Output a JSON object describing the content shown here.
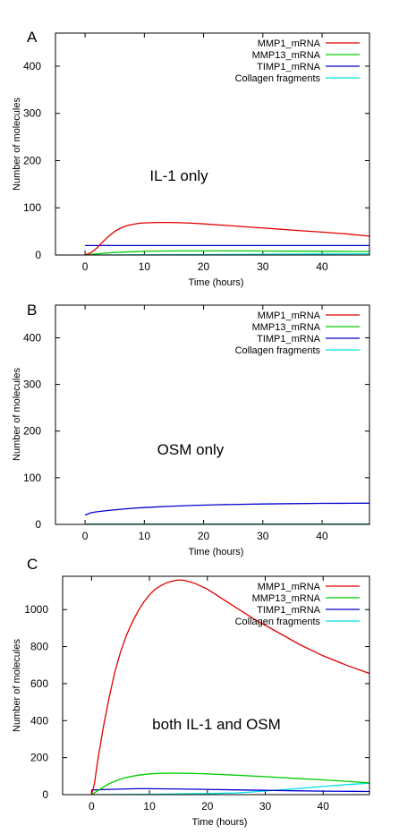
{
  "chart_data": [
    {
      "type": "line",
      "panel_label": "A",
      "annotation": "IL-1 only",
      "xlabel": "Time (hours)",
      "ylabel": "Number of molecules",
      "xlim": [
        -5,
        48
      ],
      "ylim": [
        0,
        470
      ],
      "xticks": [
        0,
        10,
        20,
        30,
        40
      ],
      "yticks": [
        0,
        100,
        200,
        300,
        400
      ],
      "grid": false,
      "legend_position": "top-right",
      "series": [
        {
          "name": "MMP1_mRNA",
          "color": "#e00000",
          "x": [
            0,
            1,
            2,
            3,
            4,
            5,
            6,
            7,
            8,
            9,
            10,
            12,
            14,
            16,
            18,
            20,
            24,
            28,
            32,
            36,
            40,
            44,
            48
          ],
          "y": [
            0,
            5,
            15,
            28,
            40,
            50,
            57,
            62,
            65,
            67,
            68,
            69,
            69,
            68.5,
            67.5,
            66,
            62.5,
            59,
            55.5,
            52,
            48.5,
            45,
            40
          ]
        },
        {
          "name": "MMP13_mRNA",
          "color": "#00cc00",
          "x": [
            0,
            2,
            4,
            6,
            8,
            10,
            12,
            16,
            20,
            25,
            30,
            35,
            40,
            45,
            48
          ],
          "y": [
            0,
            2.5,
            4.5,
            6,
            7,
            7.8,
            8.3,
            8.7,
            8.8,
            8.7,
            8.5,
            8.2,
            7.9,
            7.6,
            7.4
          ]
        },
        {
          "name": "TIMP1_mRNA",
          "color": "#0000cc",
          "x": [
            0,
            48
          ],
          "y": [
            20,
            20
          ]
        },
        {
          "name": "Collagen fragments",
          "color": "#00e0e0",
          "x": [
            0,
            10,
            20,
            30,
            40,
            48
          ],
          "y": [
            0,
            0.5,
            1,
            1.6,
            2.2,
            2.6
          ]
        }
      ]
    },
    {
      "type": "line",
      "panel_label": "B",
      "annotation": "OSM only",
      "xlabel": "Time (hours)",
      "ylabel": "Number of molecules",
      "xlim": [
        -5,
        48
      ],
      "ylim": [
        0,
        470
      ],
      "xticks": [
        0,
        10,
        20,
        30,
        40
      ],
      "yticks": [
        0,
        100,
        200,
        300,
        400
      ],
      "grid": false,
      "legend_position": "top-right",
      "series": [
        {
          "name": "MMP1_mRNA",
          "color": "#e00000",
          "x": [
            0,
            48
          ],
          "y": [
            0,
            0
          ]
        },
        {
          "name": "MMP13_mRNA",
          "color": "#00cc00",
          "x": [
            0,
            48
          ],
          "y": [
            0,
            0
          ]
        },
        {
          "name": "TIMP1_mRNA",
          "color": "#0000cc",
          "x": [
            0,
            1,
            2,
            4,
            6,
            8,
            10,
            14,
            18,
            22,
            26,
            30,
            35,
            40,
            45,
            48
          ],
          "y": [
            20,
            25,
            27,
            30,
            32.5,
            34.5,
            36,
            38.5,
            40.5,
            42,
            43,
            43.8,
            44.5,
            45,
            45.3,
            45.5
          ]
        },
        {
          "name": "Collagen fragments",
          "color": "#00e0e0",
          "x": [
            0,
            48
          ],
          "y": [
            1,
            1
          ]
        }
      ]
    },
    {
      "type": "line",
      "panel_label": "C",
      "annotation": "both IL-1 and OSM",
      "xlabel": "Time (hours)",
      "ylabel": "Number of molecules",
      "xlim": [
        -5,
        48
      ],
      "ylim": [
        0,
        1180
      ],
      "xticks": [
        0,
        10,
        20,
        30,
        40
      ],
      "yticks": [
        0,
        200,
        400,
        600,
        800,
        1000
      ],
      "grid": false,
      "legend_position": "top-right",
      "series": [
        {
          "name": "MMP1_mRNA",
          "color": "#e00000",
          "x": [
            0,
            0.5,
            1,
            2,
            3,
            4,
            5,
            6,
            7,
            8,
            9,
            10,
            11,
            12,
            13,
            14,
            15,
            16,
            17,
            18,
            20,
            22,
            25,
            28,
            32,
            36,
            40,
            44,
            48
          ],
          "y": [
            0,
            60,
            170,
            360,
            520,
            660,
            770,
            860,
            930,
            990,
            1040,
            1080,
            1110,
            1130,
            1145,
            1155,
            1160,
            1158,
            1150,
            1140,
            1110,
            1070,
            1010,
            950,
            880,
            810,
            750,
            700,
            655
          ]
        },
        {
          "name": "MMP13_mRNA",
          "color": "#00cc00",
          "x": [
            0,
            1,
            2,
            3,
            4,
            5,
            6,
            8,
            10,
            12,
            14,
            16,
            18,
            20,
            25,
            30,
            35,
            40,
            44,
            48
          ],
          "y": [
            0,
            20,
            40,
            58,
            72,
            84,
            93,
            105,
            112,
            115,
            116,
            115,
            114,
            112,
            105,
            97,
            88,
            80,
            72,
            64
          ]
        },
        {
          "name": "TIMP1_mRNA",
          "color": "#0000cc",
          "x": [
            0,
            2,
            4,
            6,
            8,
            10,
            14,
            18,
            22,
            26,
            30,
            35,
            40,
            45,
            48
          ],
          "y": [
            25,
            27,
            29,
            31,
            32,
            32,
            31,
            29,
            27,
            25,
            23,
            21,
            19,
            18,
            17
          ]
        },
        {
          "name": "Collagen fragments",
          "color": "#00e0e0",
          "x": [
            0,
            5,
            10,
            15,
            20,
            25,
            28,
            32,
            36,
            40,
            44,
            48
          ],
          "y": [
            0,
            1,
            2,
            4,
            6,
            9,
            15,
            24,
            34,
            44,
            54,
            62
          ]
        }
      ]
    }
  ]
}
